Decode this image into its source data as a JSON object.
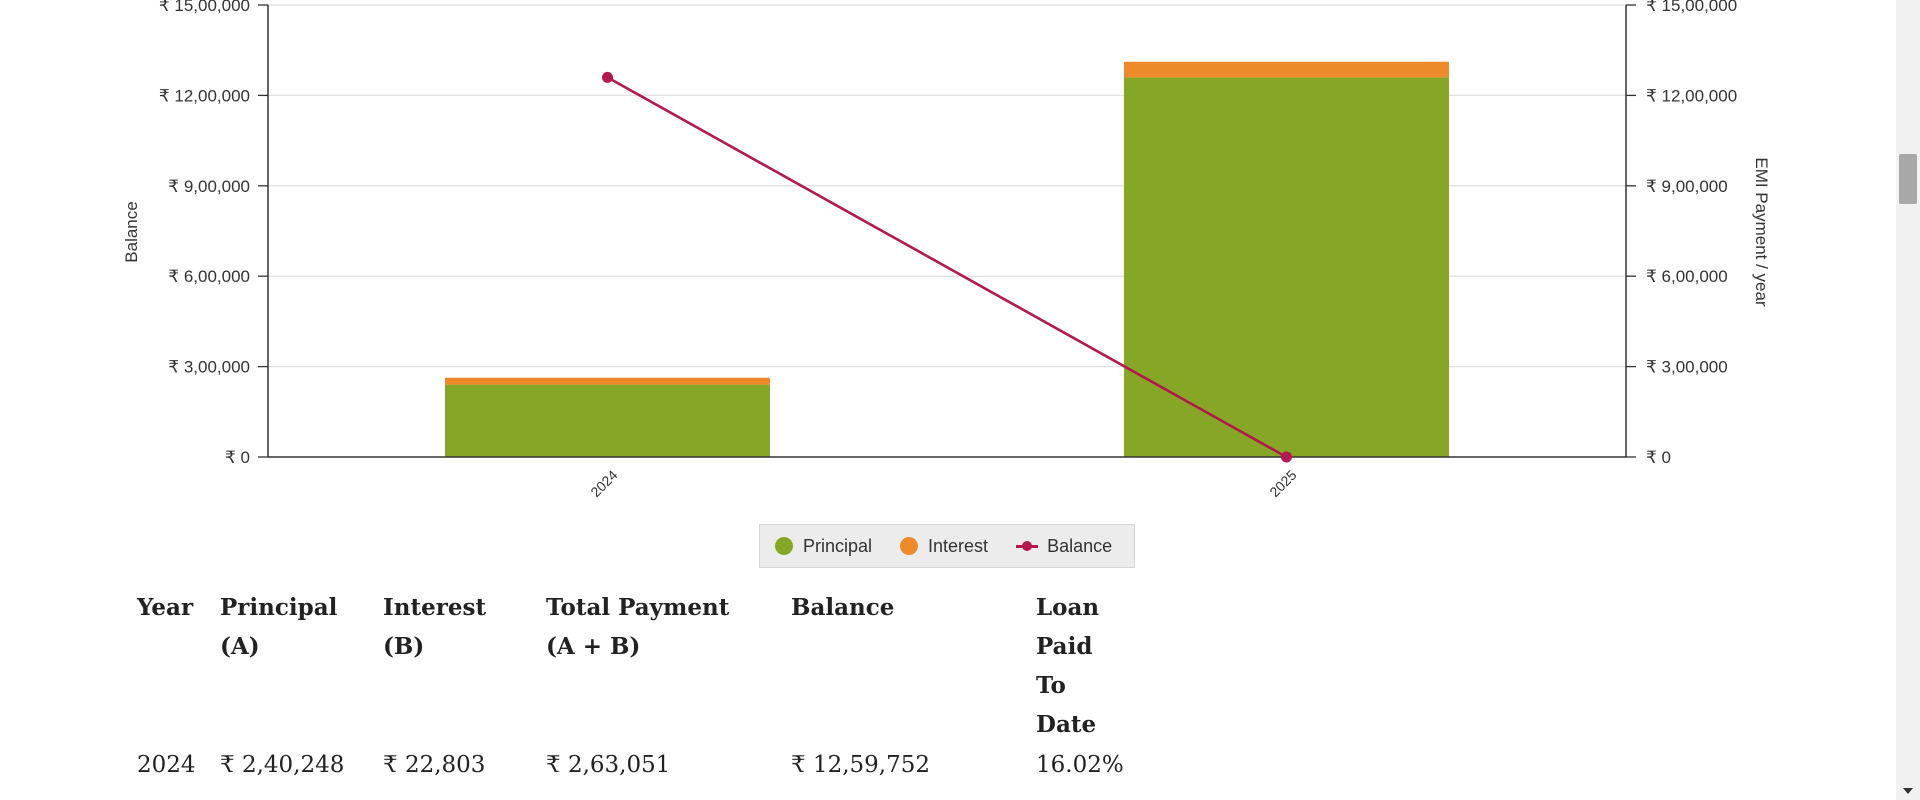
{
  "chart_data": {
    "type": "bar",
    "categories": [
      "2024",
      "2025"
    ],
    "series": [
      {
        "name": "Principal",
        "kind": "bar",
        "axis": "right",
        "values": [
          240248,
          1259752
        ]
      },
      {
        "name": "Interest",
        "kind": "bar",
        "axis": "right",
        "values": [
          22803,
          52000
        ]
      },
      {
        "name": "Balance",
        "kind": "line",
        "axis": "left",
        "values": [
          1259752,
          0
        ]
      }
    ],
    "y_left": {
      "label": "Balance",
      "ylim": [
        0,
        1500000
      ],
      "ticks": [
        "₹ 0",
        "₹ 3,00,000",
        "₹ 6,00,000",
        "₹ 9,00,000",
        "₹ 12,00,000",
        "₹ 15,00,000"
      ],
      "tick_values": [
        0,
        300000,
        600000,
        900000,
        1200000,
        1500000
      ]
    },
    "y_right": {
      "label": "EMI Payment / year",
      "ylim": [
        0,
        1500000
      ],
      "ticks": [
        "₹ 0",
        "₹ 3,00,000",
        "₹ 6,00,000",
        "₹ 9,00,000",
        "₹ 12,00,000",
        "₹ 15,00,000"
      ],
      "tick_values": [
        0,
        300000,
        600000,
        900000,
        1200000,
        1500000
      ]
    },
    "grid": true,
    "legend_position": "bottom-center"
  },
  "colors": {
    "principal": "#86a725",
    "interest": "#ed8b2b",
    "balance": "#b5174f"
  },
  "legend": {
    "principal": "Principal",
    "interest": "Interest",
    "balance": "Balance"
  },
  "table": {
    "headers": [
      [
        "Year"
      ],
      [
        "Principal",
        "(A)"
      ],
      [
        "Interest",
        "(B)"
      ],
      [
        "Total Payment",
        "(A + B)"
      ],
      [
        "Balance"
      ],
      [
        "Loan",
        "Paid",
        "To",
        "Date"
      ]
    ],
    "rows": [
      [
        "2024",
        "₹ 2,40,248",
        "₹ 22,803",
        "₹ 2,63,051",
        "₹ 12,59,752",
        "16.02%"
      ]
    ]
  }
}
